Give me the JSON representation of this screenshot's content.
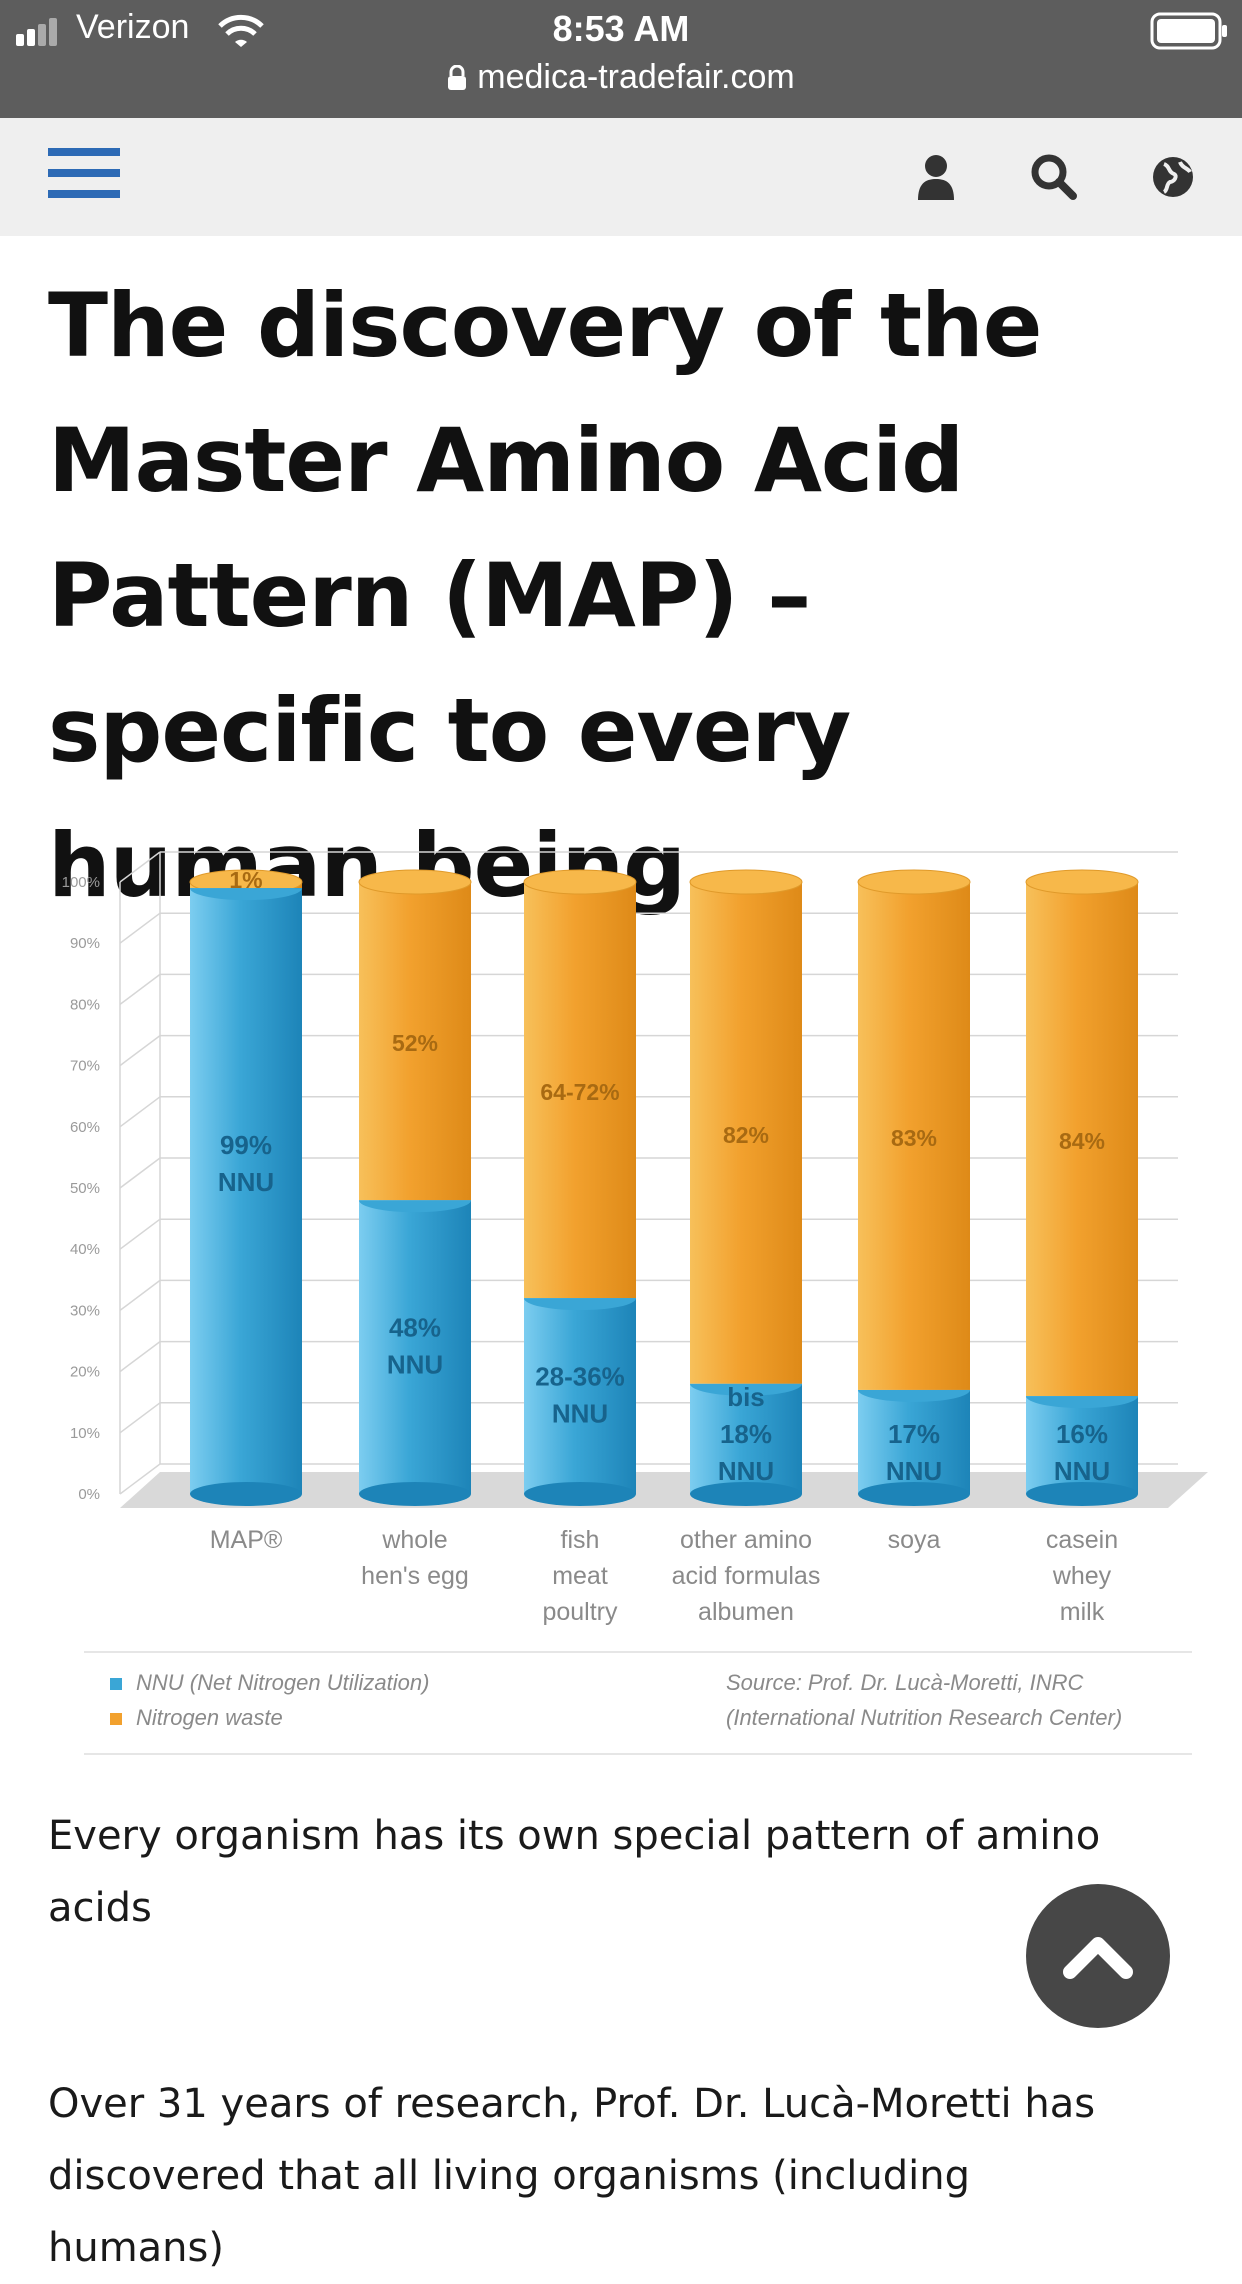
{
  "status_bar": {
    "carrier": "Verizon",
    "time": "8:53 AM",
    "url": "medica-tradefair.com",
    "icons": [
      "signal-icon",
      "wifi-icon",
      "lock-icon",
      "battery-icon"
    ]
  },
  "nav": {
    "icons": [
      "menu-icon",
      "user-icon",
      "search-icon",
      "globe-icon"
    ]
  },
  "article": {
    "title": "The discovery of the Master Amino Acid Pattern (MAP) – specific to every human being",
    "paragraph1": "Every organism has its own special pattern of amino acids",
    "paragraph2": "Over 31 years of research, Prof. Dr. Lucà-Moretti has discovered that all living organisms (including humans)"
  },
  "chart_data": {
    "type": "bar",
    "stacked": true,
    "categories": [
      "MAP®",
      "whole hen's egg",
      "fish meat poultry",
      "other amino acid formulas albumen",
      "soya",
      "casein whey milk"
    ],
    "category_lines": [
      [
        "MAP®"
      ],
      [
        "whole",
        "hen's egg"
      ],
      [
        "fish",
        "meat",
        "poultry"
      ],
      [
        "other amino",
        "acid formulas",
        "albumen"
      ],
      [
        "soya"
      ],
      [
        "casein",
        "whey",
        "milk"
      ]
    ],
    "series": [
      {
        "name": "NNU (Net Nitrogen Utilization)",
        "color": "#3aa6d6",
        "values": [
          99,
          48,
          32,
          18,
          17,
          16
        ]
      },
      {
        "name": "Nitrogen waste",
        "color": "#f2a12e",
        "values": [
          1,
          52,
          68,
          82,
          83,
          84
        ]
      }
    ],
    "nnu_labels": [
      [
        "99%",
        "NNU"
      ],
      [
        "48%",
        "NNU"
      ],
      [
        "28-36%",
        "NNU"
      ],
      [
        "bis",
        "18%",
        "NNU"
      ],
      [
        "17%",
        "NNU"
      ],
      [
        "16%",
        "NNU"
      ]
    ],
    "waste_labels": [
      "1%",
      "52%",
      "64-72%",
      "82%",
      "83%",
      "84%"
    ],
    "yticks": [
      "0%",
      "10%",
      "20%",
      "30%",
      "40%",
      "50%",
      "60%",
      "70%",
      "80%",
      "90%",
      "100%"
    ],
    "ylim": [
      0,
      100
    ],
    "grid": true,
    "legend": [
      "NNU (Net Nitrogen Utilization)",
      "Nitrogen waste"
    ],
    "source": [
      "Source: Prof. Dr. Lucà-Moretti, INRC",
      "(International Nutrition Research Center)"
    ]
  },
  "scroll_button": {
    "icon": "chevron-up-icon"
  }
}
